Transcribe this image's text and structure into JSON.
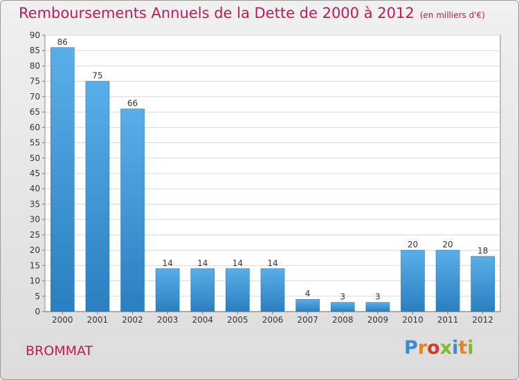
{
  "chart_data": {
    "type": "bar",
    "title": "Remboursements Annuels de la Dette de 2000 à 2012",
    "subtitle": "(en milliers d'€)",
    "categories": [
      "2000",
      "2001",
      "2002",
      "2003",
      "2004",
      "2005",
      "2006",
      "2007",
      "2008",
      "2009",
      "2010",
      "2011",
      "2012"
    ],
    "values": [
      86,
      75,
      66,
      14,
      14,
      14,
      14,
      4,
      3,
      3,
      20,
      20,
      18
    ],
    "ylim": [
      0,
      90
    ],
    "yticks": [
      0,
      5,
      10,
      15,
      20,
      25,
      30,
      35,
      40,
      45,
      50,
      55,
      60,
      65,
      70,
      75,
      80,
      85,
      90
    ],
    "grid": true,
    "bar_color_top": "#5aaee8",
    "bar_color_bottom": "#2a7fc0"
  },
  "commune": "BROMMAT",
  "logo": {
    "text": "Proxiti",
    "letter_colors": [
      "#3a8ad6",
      "#e8831e",
      "#d03b2a",
      "#7dbb2a",
      "#3a8ad6",
      "#e8831e",
      "#7dbb2a"
    ]
  }
}
